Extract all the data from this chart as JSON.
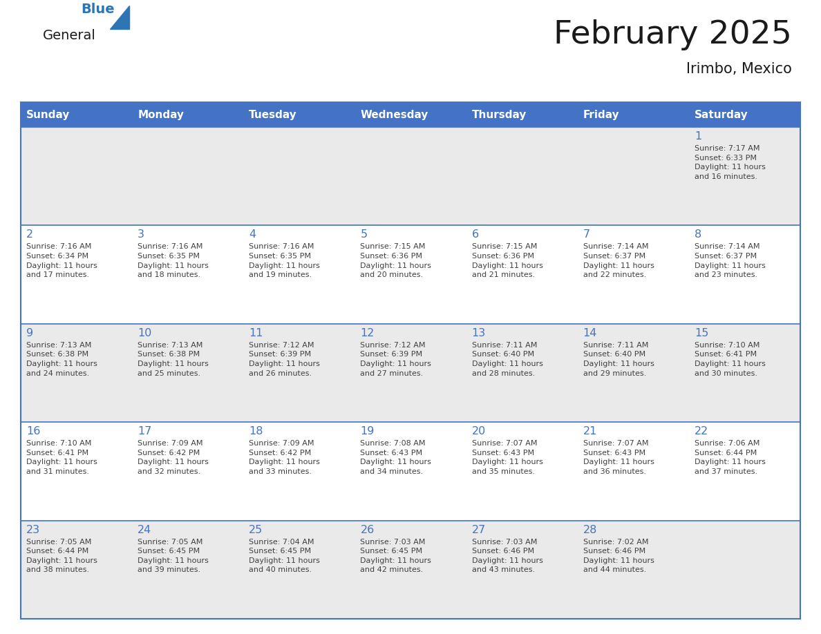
{
  "title": "February 2025",
  "subtitle": "Irimbo, Mexico",
  "days_of_week": [
    "Sunday",
    "Monday",
    "Tuesday",
    "Wednesday",
    "Thursday",
    "Friday",
    "Saturday"
  ],
  "header_bg": "#4472C4",
  "header_text": "#FFFFFF",
  "cell_bg_odd": "#EAEAEA",
  "cell_bg_even": "#FFFFFF",
  "border_color": "#4472C4",
  "day_number_color": "#4472C4",
  "cell_text_color": "#404040",
  "title_color": "#1a1a1a",
  "logo_general_color": "#1a1a1a",
  "logo_blue_color": "#2E75B6",
  "logo_triangle_color": "#2E75B6",
  "calendar_data": [
    [
      null,
      null,
      null,
      null,
      null,
      null,
      1
    ],
    [
      2,
      3,
      4,
      5,
      6,
      7,
      8
    ],
    [
      9,
      10,
      11,
      12,
      13,
      14,
      15
    ],
    [
      16,
      17,
      18,
      19,
      20,
      21,
      22
    ],
    [
      23,
      24,
      25,
      26,
      27,
      28,
      null
    ]
  ],
  "sunrise_data": {
    "1": "Sunrise: 7:17 AM\nSunset: 6:33 PM\nDaylight: 11 hours\nand 16 minutes.",
    "2": "Sunrise: 7:16 AM\nSunset: 6:34 PM\nDaylight: 11 hours\nand 17 minutes.",
    "3": "Sunrise: 7:16 AM\nSunset: 6:35 PM\nDaylight: 11 hours\nand 18 minutes.",
    "4": "Sunrise: 7:16 AM\nSunset: 6:35 PM\nDaylight: 11 hours\nand 19 minutes.",
    "5": "Sunrise: 7:15 AM\nSunset: 6:36 PM\nDaylight: 11 hours\nand 20 minutes.",
    "6": "Sunrise: 7:15 AM\nSunset: 6:36 PM\nDaylight: 11 hours\nand 21 minutes.",
    "7": "Sunrise: 7:14 AM\nSunset: 6:37 PM\nDaylight: 11 hours\nand 22 minutes.",
    "8": "Sunrise: 7:14 AM\nSunset: 6:37 PM\nDaylight: 11 hours\nand 23 minutes.",
    "9": "Sunrise: 7:13 AM\nSunset: 6:38 PM\nDaylight: 11 hours\nand 24 minutes.",
    "10": "Sunrise: 7:13 AM\nSunset: 6:38 PM\nDaylight: 11 hours\nand 25 minutes.",
    "11": "Sunrise: 7:12 AM\nSunset: 6:39 PM\nDaylight: 11 hours\nand 26 minutes.",
    "12": "Sunrise: 7:12 AM\nSunset: 6:39 PM\nDaylight: 11 hours\nand 27 minutes.",
    "13": "Sunrise: 7:11 AM\nSunset: 6:40 PM\nDaylight: 11 hours\nand 28 minutes.",
    "14": "Sunrise: 7:11 AM\nSunset: 6:40 PM\nDaylight: 11 hours\nand 29 minutes.",
    "15": "Sunrise: 7:10 AM\nSunset: 6:41 PM\nDaylight: 11 hours\nand 30 minutes.",
    "16": "Sunrise: 7:10 AM\nSunset: 6:41 PM\nDaylight: 11 hours\nand 31 minutes.",
    "17": "Sunrise: 7:09 AM\nSunset: 6:42 PM\nDaylight: 11 hours\nand 32 minutes.",
    "18": "Sunrise: 7:09 AM\nSunset: 6:42 PM\nDaylight: 11 hours\nand 33 minutes.",
    "19": "Sunrise: 7:08 AM\nSunset: 6:43 PM\nDaylight: 11 hours\nand 34 minutes.",
    "20": "Sunrise: 7:07 AM\nSunset: 6:43 PM\nDaylight: 11 hours\nand 35 minutes.",
    "21": "Sunrise: 7:07 AM\nSunset: 6:43 PM\nDaylight: 11 hours\nand 36 minutes.",
    "22": "Sunrise: 7:06 AM\nSunset: 6:44 PM\nDaylight: 11 hours\nand 37 minutes.",
    "23": "Sunrise: 7:05 AM\nSunset: 6:44 PM\nDaylight: 11 hours\nand 38 minutes.",
    "24": "Sunrise: 7:05 AM\nSunset: 6:45 PM\nDaylight: 11 hours\nand 39 minutes.",
    "25": "Sunrise: 7:04 AM\nSunset: 6:45 PM\nDaylight: 11 hours\nand 40 minutes.",
    "26": "Sunrise: 7:03 AM\nSunset: 6:45 PM\nDaylight: 11 hours\nand 42 minutes.",
    "27": "Sunrise: 7:03 AM\nSunset: 6:46 PM\nDaylight: 11 hours\nand 43 minutes.",
    "28": "Sunrise: 7:02 AM\nSunset: 6:46 PM\nDaylight: 11 hours\nand 44 minutes."
  }
}
